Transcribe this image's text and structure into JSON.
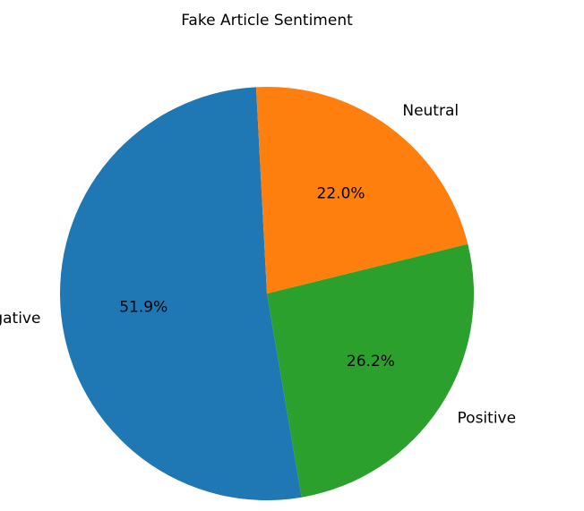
{
  "chart_data": {
    "type": "pie",
    "title": "Fake Article Sentiment",
    "labels": [
      "Negative",
      "Positive",
      "Neutral"
    ],
    "values": [
      51.9,
      26.2,
      22.0
    ],
    "value_labels": [
      "51.9%",
      "26.2%",
      "22.0%"
    ],
    "colors": [
      "#1f77b4",
      "#2ca02c",
      "#ff7f0e"
    ],
    "start_angle_deg": 93,
    "direction": "counterclockwise",
    "legend": "none"
  }
}
